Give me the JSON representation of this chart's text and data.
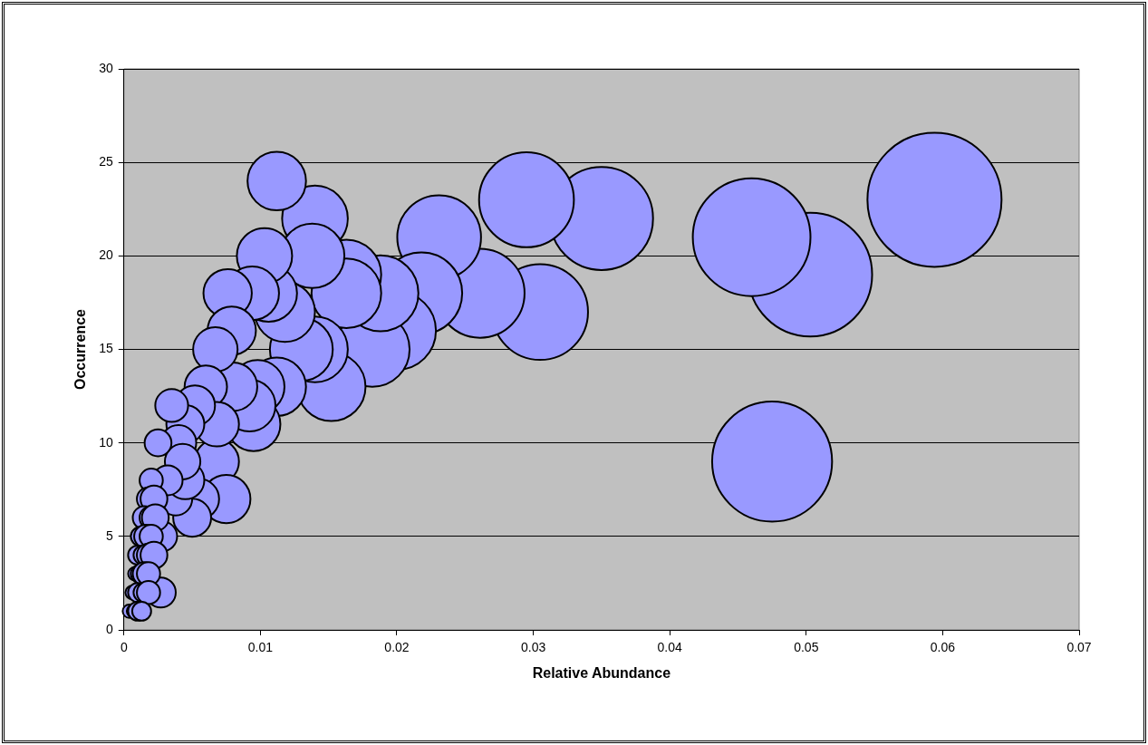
{
  "chart_data": {
    "type": "bubble",
    "xlabel": "Relative Abundance",
    "ylabel": "Occurrence",
    "color": "#9999ff",
    "xlim": [
      0,
      0.07
    ],
    "xticks": [
      0,
      0.01,
      0.02,
      0.03,
      0.04,
      0.05,
      0.06,
      0.07
    ],
    "ylim": [
      0,
      30
    ],
    "yticks": [
      0,
      5,
      10,
      15,
      20,
      25,
      30
    ],
    "grid": "y",
    "x": [
      0.0594,
      0.0503,
      0.046,
      0.0475,
      0.035,
      0.0295,
      0.0305,
      0.0261,
      0.0231,
      0.0218,
      0.02,
      0.0182,
      0.0188,
      0.0163,
      0.0163,
      0.0152,
      0.014,
      0.0138,
      0.014,
      0.013,
      0.0118,
      0.0112,
      0.0112,
      0.0106,
      0.0103,
      0.0095,
      0.0098,
      0.0092,
      0.0094,
      0.0076,
      0.008,
      0.0079,
      0.0067,
      0.0068,
      0.0075,
      0.006,
      0.0068,
      0.0055,
      0.005,
      0.0052,
      0.0045,
      0.004,
      0.0038,
      0.0045,
      0.0043,
      0.0035,
      0.0032,
      0.0025,
      0.0027,
      0.0028,
      0.002,
      0.0018,
      0.0022,
      0.0015,
      0.002,
      0.0023,
      0.0012,
      0.0016,
      0.002,
      0.001,
      0.0014,
      0.0018,
      0.0022,
      0.0008,
      0.0012,
      0.0015,
      0.0018,
      0.0006,
      0.001,
      0.0014,
      0.0018,
      0.0004,
      0.0007,
      0.001,
      0.0013
    ],
    "values": [
      23,
      19,
      21,
      9,
      22,
      23,
      17,
      18,
      21,
      18,
      16,
      15,
      18,
      19,
      18,
      13,
      22,
      20,
      15,
      15,
      17,
      24,
      13,
      18,
      20,
      11,
      13,
      12,
      18,
      18,
      13,
      16,
      15,
      9,
      7,
      13,
      11,
      7,
      6,
      12,
      11,
      10,
      7,
      8,
      9,
      12,
      8,
      10,
      2,
      5,
      8,
      7,
      7,
      6,
      6,
      6,
      5,
      5,
      5,
      4,
      4,
      4,
      4,
      3,
      3,
      3,
      3,
      2,
      2,
      2,
      2,
      1,
      1,
      1,
      1
    ],
    "sizes": [
      1,
      0.85,
      0.77,
      0.8,
      0.59,
      0.5,
      0.51,
      0.44,
      0.39,
      0.37,
      0.34,
      0.31,
      0.32,
      0.27,
      0.27,
      0.26,
      0.24,
      0.23,
      0.24,
      0.22,
      0.2,
      0.19,
      0.19,
      0.18,
      0.17,
      0.16,
      0.16,
      0.15,
      0.16,
      0.13,
      0.13,
      0.13,
      0.11,
      0.11,
      0.13,
      0.1,
      0.11,
      0.09,
      0.08,
      0.09,
      0.08,
      0.07,
      0.06,
      0.08,
      0.07,
      0.06,
      0.05,
      0.04,
      0.05,
      0.05,
      0.03,
      0.03,
      0.04,
      0.03,
      0.03,
      0.04,
      0.02,
      0.03,
      0.03,
      0.02,
      0.02,
      0.03,
      0.04,
      0.01,
      0.02,
      0.03,
      0.03,
      0.01,
      0.02,
      0.02,
      0.03,
      0.01,
      0.01,
      0.02,
      0.02
    ]
  }
}
